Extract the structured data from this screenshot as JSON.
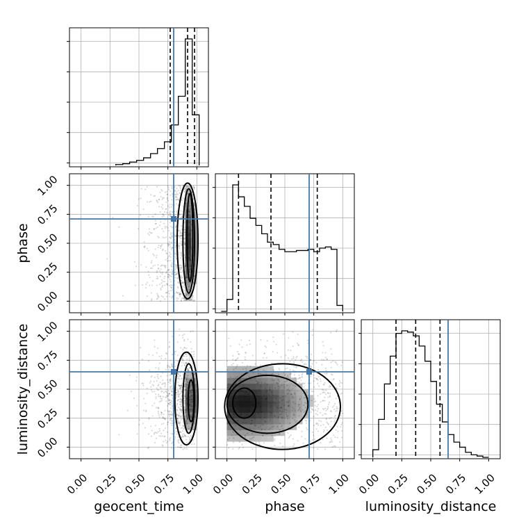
{
  "chart_data": {
    "type": "corner",
    "parameters": [
      "geocent_time",
      "phase",
      "luminosity_distance"
    ],
    "axis_range": [
      -0.1,
      1.1
    ],
    "ticks": [
      0.0,
      0.25,
      0.5,
      0.75,
      1.0
    ],
    "tick_labels": [
      "0.00",
      "0.25",
      "0.50",
      "0.75",
      "1.00"
    ],
    "truths": {
      "geocent_time": 0.8,
      "phase": 0.71,
      "luminosity_distance": 0.65
    },
    "truth_color": "#4477aa",
    "grid": true,
    "histograms": [
      {
        "parameter": "geocent_time",
        "bin_edges": [
          0.3,
          0.36,
          0.42,
          0.48,
          0.54,
          0.6,
          0.66,
          0.72,
          0.78,
          0.84,
          0.9,
          0.96,
          1.02
        ],
        "counts": [
          1,
          2,
          4,
          6,
          9,
          14,
          20,
          28,
          48,
          82,
          150,
          60
        ],
        "quantiles": [
          0.77,
          0.92,
          0.98
        ]
      },
      {
        "parameter": "phase",
        "bin_edges": [
          -0.05,
          0.0,
          0.05,
          0.1,
          0.15,
          0.2,
          0.25,
          0.3,
          0.35,
          0.4,
          0.45,
          0.5,
          0.55,
          0.6,
          0.65,
          0.7,
          0.75,
          0.8,
          0.85,
          0.9,
          0.95,
          1.0
        ],
        "counts": [
          0,
          10,
          106,
          96,
          88,
          78,
          72,
          65,
          58,
          56,
          52,
          50,
          50,
          51,
          51,
          52,
          50,
          53,
          54,
          52,
          5
        ],
        "quantiles": [
          0.1,
          0.38,
          0.78
        ]
      },
      {
        "parameter": "luminosity_distance",
        "bin_edges": [
          0.0,
          0.05,
          0.1,
          0.15,
          0.2,
          0.25,
          0.3,
          0.35,
          0.4,
          0.45,
          0.5,
          0.55,
          0.6,
          0.65,
          0.7,
          0.75,
          0.8,
          0.85,
          0.9,
          0.95,
          1.0
        ],
        "counts": [
          6,
          30,
          58,
          80,
          98,
          100,
          99,
          96,
          88,
          76,
          60,
          42,
          28,
          18,
          12,
          8,
          4,
          2,
          1,
          0
        ],
        "quantiles": [
          0.2,
          0.37,
          0.58
        ]
      }
    ],
    "pairs": [
      {
        "x": "geocent_time",
        "y": "phase",
        "density_center": [
          0.94,
          0.5
        ],
        "density_spread": [
          0.03,
          0.3
        ],
        "contour_levels": [
          {
            "cx": 0.92,
            "cy": 0.52,
            "rx": 0.09,
            "ry": 0.5
          },
          {
            "cx": 0.93,
            "cy": 0.52,
            "rx": 0.05,
            "ry": 0.45
          },
          {
            "cx": 0.94,
            "cy": 0.55,
            "rx": 0.025,
            "ry": 0.38
          }
        ]
      },
      {
        "x": "geocent_time",
        "y": "luminosity_distance",
        "density_center": [
          0.95,
          0.4
        ],
        "density_spread": [
          0.03,
          0.18
        ],
        "contour_levels": [
          {
            "cx": 0.91,
            "cy": 0.42,
            "rx": 0.1,
            "ry": 0.4
          },
          {
            "cx": 0.93,
            "cy": 0.42,
            "rx": 0.05,
            "ry": 0.3
          },
          {
            "cx": 0.95,
            "cy": 0.4,
            "rx": 0.025,
            "ry": 0.18
          }
        ]
      },
      {
        "x": "phase",
        "y": "luminosity_distance",
        "density_center": [
          0.15,
          0.38
        ],
        "density_spread": [
          0.35,
          0.2
        ],
        "contour_levels": [
          {
            "cx": 0.48,
            "cy": 0.35,
            "rx": 0.5,
            "ry": 0.37
          },
          {
            "cx": 0.35,
            "cy": 0.37,
            "rx": 0.35,
            "ry": 0.25
          },
          {
            "cx": 0.15,
            "cy": 0.38,
            "rx": 0.1,
            "ry": 0.13
          }
        ]
      }
    ]
  }
}
